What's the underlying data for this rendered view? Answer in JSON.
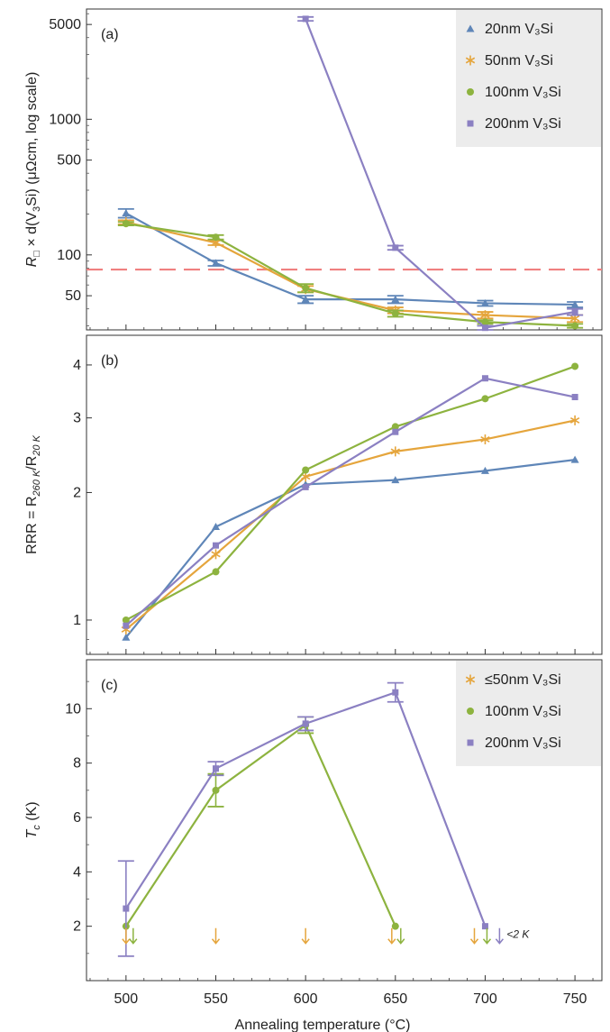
{
  "chart_data": [
    {
      "type": "line",
      "panel_label": "(a)",
      "ylabel_parts": [
        "R",
        "□",
        " × d(V",
        "3",
        "Si) (μΩcm, log scale)"
      ],
      "yscale": "log",
      "ylim": [
        28,
        6500
      ],
      "xlim": [
        478,
        765
      ],
      "yticks": [
        50,
        100,
        500,
        1000,
        5000
      ],
      "x": [
        500,
        550,
        600,
        650,
        700,
        750
      ],
      "reference_line": {
        "y": 78,
        "color": "#f08080",
        "style": "dashed"
      },
      "legend_position": "top-right",
      "series": [
        {
          "name": "20nm V₃Si",
          "color": "#5f86b8",
          "marker": "triangle",
          "values": [
            203,
            87,
            47,
            47,
            44,
            43
          ],
          "err": [
            15,
            4,
            3,
            3,
            2,
            2
          ]
        },
        {
          "name": "50nm V₃Si",
          "color": "#e5a53c",
          "marker": "star",
          "values": [
            174,
            123,
            56,
            39,
            36,
            34
          ],
          "err": [
            6,
            5,
            3,
            2,
            2,
            2
          ]
        },
        {
          "name": "100nm V₃Si",
          "color": "#8db33f",
          "marker": "circle",
          "values": [
            170,
            135,
            57,
            37,
            32,
            30
          ],
          "err": [
            5,
            5,
            4,
            2,
            1,
            1
          ]
        },
        {
          "name": "200nm V₃Si",
          "color": "#8b80c2",
          "marker": "square",
          "values": [
            null,
            null,
            5500,
            113,
            29,
            38
          ],
          "err": [
            0,
            0,
            180,
            4,
            1,
            2
          ]
        }
      ]
    },
    {
      "type": "line",
      "panel_label": "(b)",
      "ylabel_parts": [
        "RRR = R",
        "260 K",
        "/R",
        "20 K"
      ],
      "yscale": "log",
      "ylim": [
        0.83,
        4.7
      ],
      "xlim": [
        478,
        765
      ],
      "yticks": [
        1,
        2,
        3,
        4
      ],
      "x": [
        500,
        550,
        600,
        650,
        700,
        750
      ],
      "series": [
        {
          "name": "20nm V₃Si",
          "color": "#5f86b8",
          "marker": "triangle",
          "values": [
            0.91,
            1.66,
            2.09,
            2.14,
            2.25,
            2.39
          ]
        },
        {
          "name": "50nm V₃Si",
          "color": "#e5a53c",
          "marker": "star",
          "values": [
            0.95,
            1.43,
            2.18,
            2.5,
            2.67,
            2.96
          ]
        },
        {
          "name": "100nm V₃Si",
          "color": "#8db33f",
          "marker": "circle",
          "values": [
            1.0,
            1.3,
            2.26,
            2.86,
            3.33,
            3.97
          ]
        },
        {
          "name": "200nm V₃Si",
          "color": "#8b80c2",
          "marker": "square",
          "values": [
            0.97,
            1.5,
            2.06,
            2.78,
            3.72,
            3.36
          ]
        }
      ]
    },
    {
      "type": "line",
      "panel_label": "(c)",
      "ylabel_parts": [
        "T",
        "c",
        " (K)"
      ],
      "yscale": "linear",
      "ylim": [
        0,
        11.8
      ],
      "xlim": [
        478,
        765
      ],
      "yticks": [
        2,
        4,
        6,
        8,
        10
      ],
      "xticks": [
        500,
        550,
        600,
        650,
        700,
        750
      ],
      "xlabel": "Annealing temperature (°C)",
      "legend_position": "top-right",
      "series": [
        {
          "name": "≤50nm V₃Si",
          "color": "#e5a53c",
          "marker": "star",
          "points": []
        },
        {
          "name": "100nm V₃Si",
          "color": "#8db33f",
          "marker": "circle",
          "points": [
            [
              500,
              2.0,
              0
            ],
            [
              550,
              7.0,
              0.6
            ],
            [
              600,
              9.4,
              0.3
            ],
            [
              650,
              2.0,
              0
            ]
          ]
        },
        {
          "name": "200nm V₃Si",
          "color": "#8b80c2",
          "marker": "square",
          "points": [
            [
              500,
              2.65,
              1.75
            ],
            [
              550,
              7.8,
              0.25
            ],
            [
              600,
              9.45,
              0.25
            ],
            [
              650,
              10.6,
              0.35
            ],
            [
              700,
              2.0,
              0
            ]
          ]
        }
      ],
      "below_2K_arrows": [
        {
          "x": 500,
          "series": "≤50nm V₃Si",
          "color": "#e5a53c"
        },
        {
          "x": 504,
          "series": "100nm V₃Si",
          "color": "#8db33f"
        },
        {
          "x": 550,
          "series": "≤50nm V₃Si",
          "color": "#e5a53c"
        },
        {
          "x": 600,
          "series": "≤50nm V₃Si",
          "color": "#e5a53c"
        },
        {
          "x": 648,
          "series": "≤50nm V₃Si",
          "color": "#e5a53c"
        },
        {
          "x": 653,
          "series": "100nm V₃Si",
          "color": "#8db33f"
        },
        {
          "x": 694,
          "series": "≤50nm V₃Si",
          "color": "#e5a53c"
        },
        {
          "x": 701,
          "series": "100nm V₃Si",
          "color": "#8db33f"
        },
        {
          "x": 708,
          "series": "200nm V₃Si",
          "color": "#8b80c2"
        }
      ],
      "arrow_y": 1.6,
      "annotation": "<2 K"
    }
  ]
}
